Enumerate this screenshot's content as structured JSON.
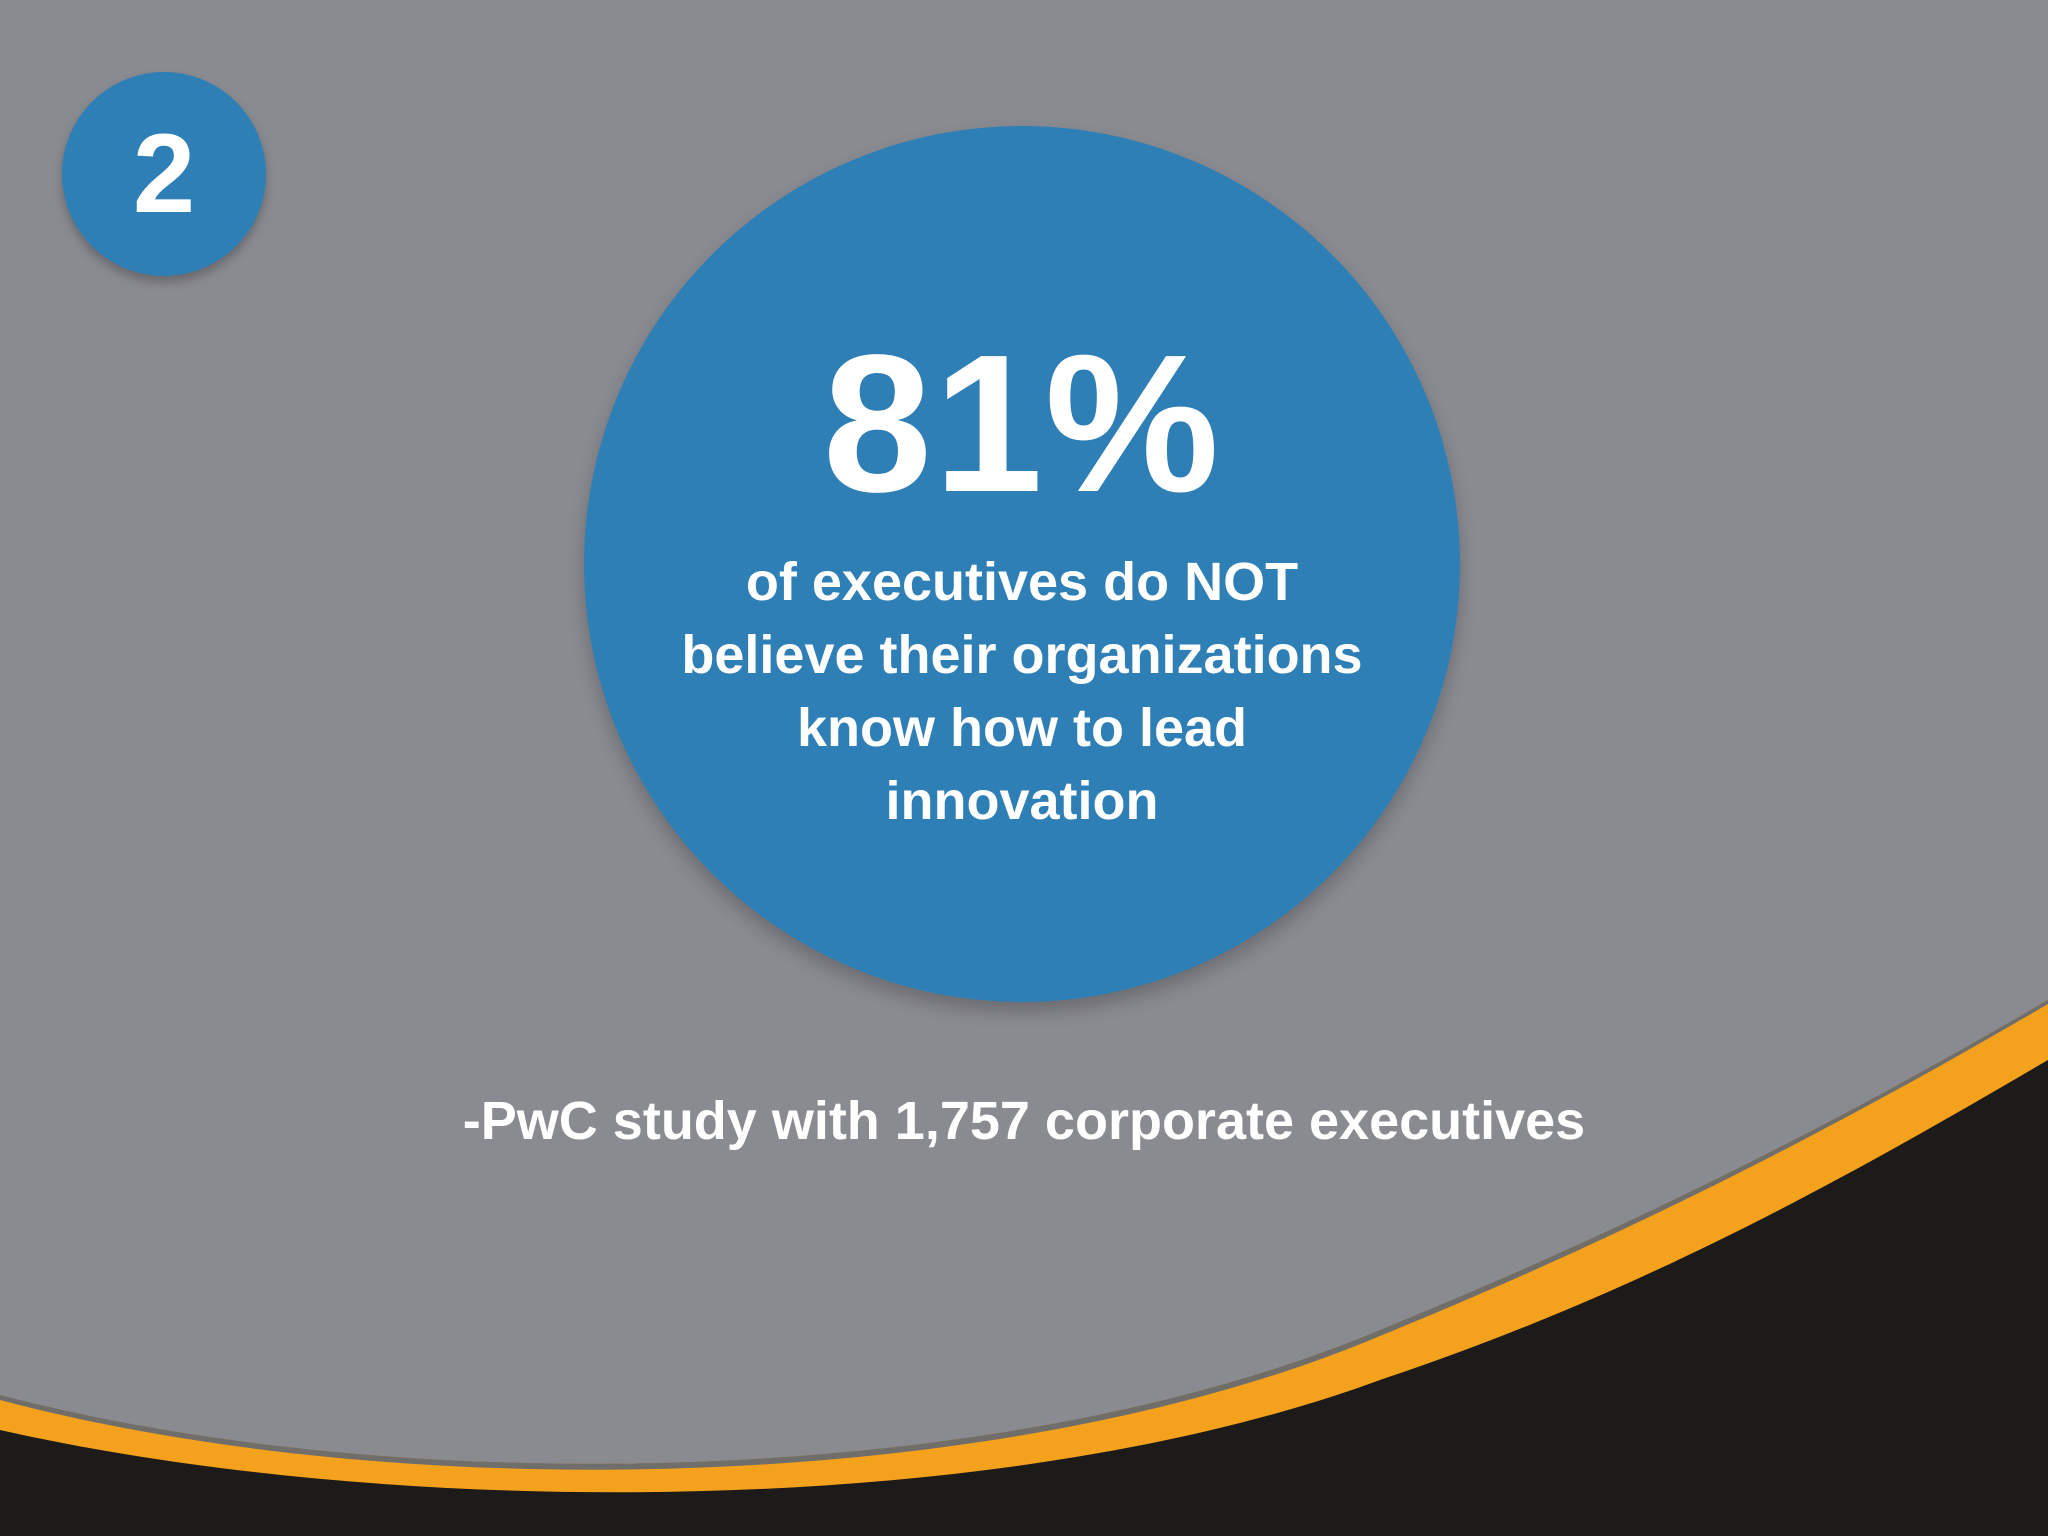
{
  "slide": {
    "number": "2",
    "stat_value": "81%",
    "stat_description": "of executives do NOT believe their organizations know how to lead innovation",
    "source": "-PwC study with 1,757 corporate executives"
  },
  "colors": {
    "background": "#8a8b91",
    "circle": "#2f7fb7",
    "accent_orange": "#f4a11d",
    "accent_dark": "#1a1a1a",
    "text": "#ffffff"
  }
}
